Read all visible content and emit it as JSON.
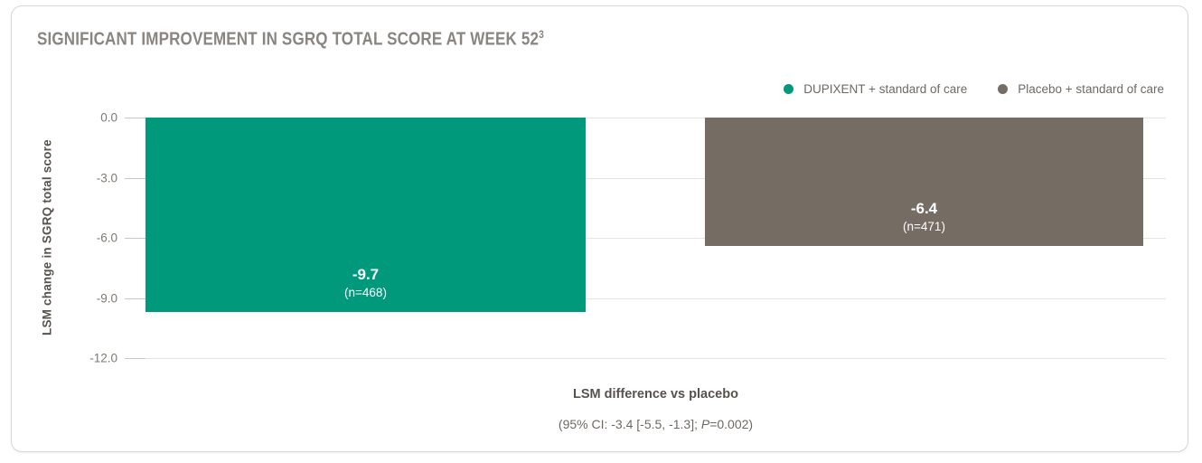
{
  "card": {
    "title": "SIGNIFICANT IMPROVEMENT IN SGRQ TOTAL SCORE AT WEEK 52",
    "title_superscript": "3"
  },
  "legend": {
    "items": [
      {
        "label": "DUPIXENT + standard of care",
        "color": "#00997b"
      },
      {
        "label": "Placebo + standard of care",
        "color": "#756c64"
      }
    ]
  },
  "chart_data": {
    "type": "bar",
    "title": "SIGNIFICANT IMPROVEMENT IN SGRQ TOTAL SCORE AT WEEK 52³",
    "ylabel": "LSM change in SGRQ total score",
    "xlabel": "LSM difference vs placebo",
    "ylim": [
      0,
      -12
    ],
    "grid": true,
    "legend_position": "top-right",
    "ytick_labels": [
      "0.0",
      "-3.0",
      "-6.0",
      "-9.0",
      "-12.0"
    ],
    "ytick_values": [
      0,
      -3,
      -6,
      -9,
      -12
    ],
    "categories": [
      "DUPIXENT + standard of care",
      "Placebo + standard of care"
    ],
    "series": [
      {
        "name": "DUPIXENT + standard of care",
        "value": -9.7,
        "value_label": "-9.7",
        "n_label": "(n=468)",
        "color": "#00997b"
      },
      {
        "name": "Placebo + standard of care",
        "value": -6.4,
        "value_label": "-6.4",
        "n_label": "(n=471)",
        "color": "#756c64"
      }
    ],
    "annotation": "(95% CI: -3.4 [-5.5, -1.3]; P=0.002)"
  },
  "footer": {
    "label": "LSM difference vs placebo",
    "detail_prefix": "(95% CI: -3.4 [-5.5, -1.3]; ",
    "detail_p": "P",
    "detail_suffix": "=0.002)"
  }
}
